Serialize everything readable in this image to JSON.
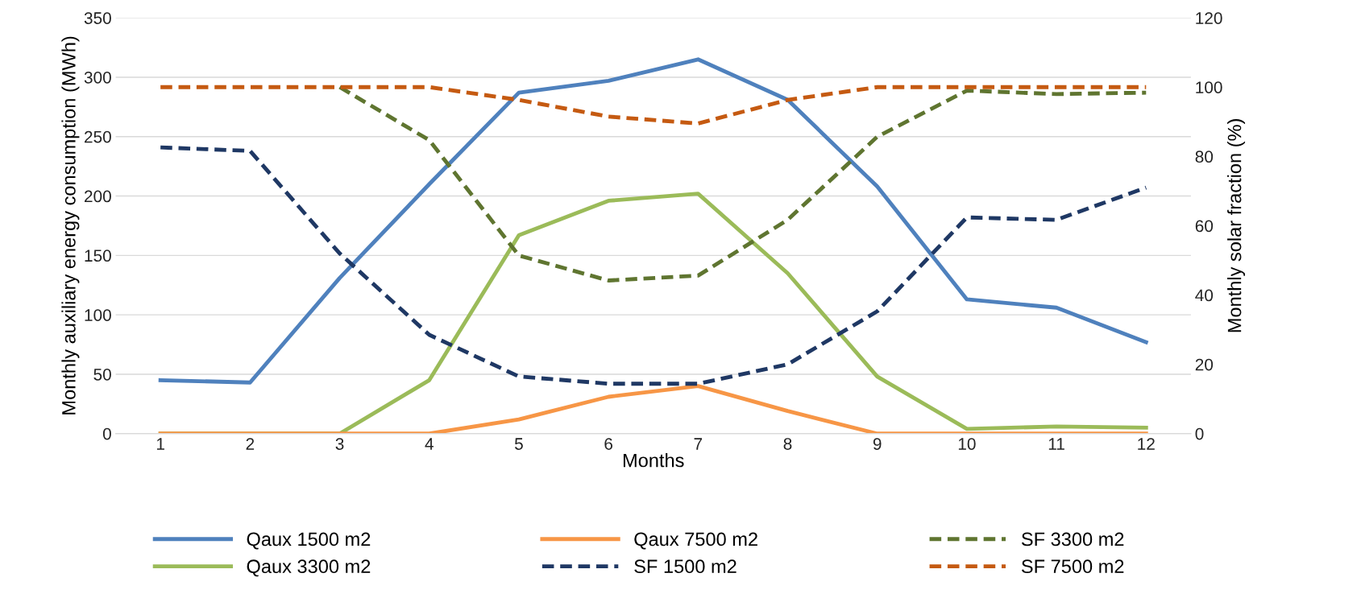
{
  "chart_data": {
    "type": "line",
    "xlabel": "Months",
    "ylabel": "Monthly auxiliary energy consumption (MWh)",
    "y2label": "Monthly solar fraction (%)",
    "categories": [
      "1",
      "2",
      "3",
      "4",
      "5",
      "6",
      "7",
      "8",
      "9",
      "10",
      "11",
      "12"
    ],
    "ylim": [
      0,
      350
    ],
    "yticks": [
      0,
      50,
      100,
      150,
      200,
      250,
      300,
      350
    ],
    "y2lim": [
      0,
      120
    ],
    "y2ticks": [
      0,
      20,
      40,
      60,
      80,
      100,
      120
    ],
    "grid": "y",
    "legend": "bottom",
    "series": [
      {
        "name": "Qaux 1500 m2",
        "color": "#4f81bd",
        "line_style": "solid",
        "values": [
          45,
          43,
          131,
          210,
          287,
          297,
          315,
          281,
          208,
          113,
          106,
          77
        ]
      },
      {
        "name": "Qaux 3300 m2",
        "color": "#9bbb59",
        "line_style": "solid",
        "values": [
          0,
          0,
          0,
          45,
          167,
          196,
          202,
          135,
          48,
          4,
          6,
          5
        ]
      },
      {
        "name": "Qaux 7500 m2",
        "color": "#f79646",
        "line_style": "solid",
        "values": [
          0,
          0,
          0,
          0,
          12,
          31,
          40,
          19,
          0,
          0,
          0,
          0
        ]
      },
      {
        "name": "SF 1500 m2",
        "color": "#1f3864",
        "line_style": "dashed",
        "axis": "y2",
        "values": [
          82.6,
          81.6,
          52,
          28.5,
          16.5,
          14.4,
          14.4,
          20,
          35.3,
          62.4,
          61.7,
          71
        ]
      },
      {
        "name": "SF 3300 m2",
        "color": "#5f7530",
        "line_style": "dashed",
        "axis": "y2",
        "values": [
          null,
          null,
          100,
          84.7,
          51.4,
          44.2,
          45.6,
          61.7,
          85.7,
          99,
          98,
          98.4
        ]
      },
      {
        "name": "SF 7500 m2",
        "color": "#c55a11",
        "line_style": "dashed",
        "axis": "y2",
        "values": [
          100,
          100,
          100,
          100,
          96.3,
          91.5,
          89.5,
          96.3,
          100,
          100,
          100,
          100
        ]
      }
    ]
  }
}
